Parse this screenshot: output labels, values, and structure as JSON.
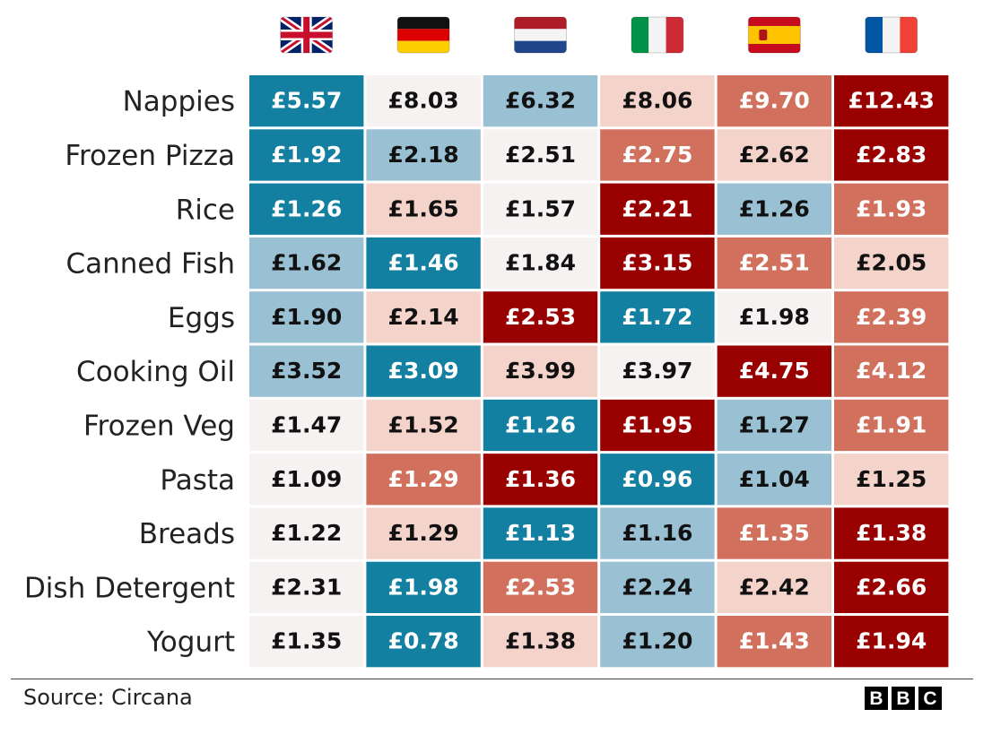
{
  "chart_data": {
    "type": "heatmap",
    "title": "",
    "columns": [
      {
        "flag": "uk-flag-icon"
      },
      {
        "flag": "germany-flag-icon"
      },
      {
        "flag": "netherlands-flag-icon"
      },
      {
        "flag": "italy-flag-icon"
      },
      {
        "flag": "spain-flag-icon"
      },
      {
        "flag": "france-flag-icon"
      }
    ],
    "rows": [
      "Nappies",
      "Frozen Pizza",
      "Rice",
      "Canned Fish",
      "Eggs",
      "Cooking Oil",
      "Frozen Veg",
      "Pasta",
      "Breads",
      "Dish Detergent",
      "Yogurt"
    ],
    "unit": "£",
    "values": [
      [
        5.57,
        8.03,
        6.32,
        8.06,
        9.7,
        12.43
      ],
      [
        1.92,
        2.18,
        2.51,
        2.75,
        2.62,
        2.83
      ],
      [
        1.26,
        1.65,
        1.57,
        2.21,
        1.26,
        1.93
      ],
      [
        1.62,
        1.46,
        1.84,
        3.15,
        2.51,
        2.05
      ],
      [
        1.9,
        2.14,
        2.53,
        1.72,
        1.98,
        2.39
      ],
      [
        3.52,
        3.09,
        3.99,
        3.97,
        4.75,
        4.12
      ],
      [
        1.47,
        1.52,
        1.26,
        1.95,
        1.27,
        1.91
      ],
      [
        1.09,
        1.29,
        1.36,
        0.96,
        1.04,
        1.25
      ],
      [
        1.22,
        1.29,
        1.13,
        1.16,
        1.35,
        1.38
      ],
      [
        2.31,
        1.98,
        2.53,
        2.24,
        2.42,
        2.66
      ],
      [
        1.35,
        0.78,
        1.38,
        1.2,
        1.43,
        1.94
      ]
    ],
    "labels": [
      [
        "£5.57",
        "£8.03",
        "£6.32",
        "£8.06",
        "£9.70",
        "£12.43"
      ],
      [
        "£1.92",
        "£2.18",
        "£2.51",
        "£2.75",
        "£2.62",
        "£2.83"
      ],
      [
        "£1.26",
        "£1.65",
        "£1.57",
        "£2.21",
        "£1.26",
        "£1.93"
      ],
      [
        "£1.62",
        "£1.46",
        "£1.84",
        "£3.15",
        "£2.51",
        "£2.05"
      ],
      [
        "£1.90",
        "£2.14",
        "£2.53",
        "£1.72",
        "£1.98",
        "£2.39"
      ],
      [
        "£3.52",
        "£3.09",
        "£3.99",
        "£3.97",
        "£4.75",
        "£4.12"
      ],
      [
        "£1.47",
        "£1.52",
        "£1.26",
        "£1.95",
        "£1.27",
        "£1.91"
      ],
      [
        "£1.09",
        "£1.29",
        "£1.36",
        "£0.96",
        "£1.04",
        "£1.25"
      ],
      [
        "£1.22",
        "£1.29",
        "£1.13",
        "£1.16",
        "£1.35",
        "£1.38"
      ],
      [
        "£2.31",
        "£1.98",
        "£2.53",
        "£2.24",
        "£2.42",
        "£2.66"
      ],
      [
        "£1.35",
        "£0.78",
        "£1.38",
        "£1.20",
        "£1.43",
        "£1.94"
      ]
    ],
    "colorscale": [
      "#1380A1",
      "#5E9DB8",
      "#9AC0D3",
      "#C9DEE7",
      "#F7F2F2",
      "#F4D3CA",
      "#EBB0A3",
      "#D0705D",
      "#B0402E",
      "#990000"
    ],
    "grid": false,
    "legend": "none"
  },
  "footer": {
    "source": "Source: Circana",
    "logo_letters": [
      "B",
      "B",
      "C"
    ]
  }
}
